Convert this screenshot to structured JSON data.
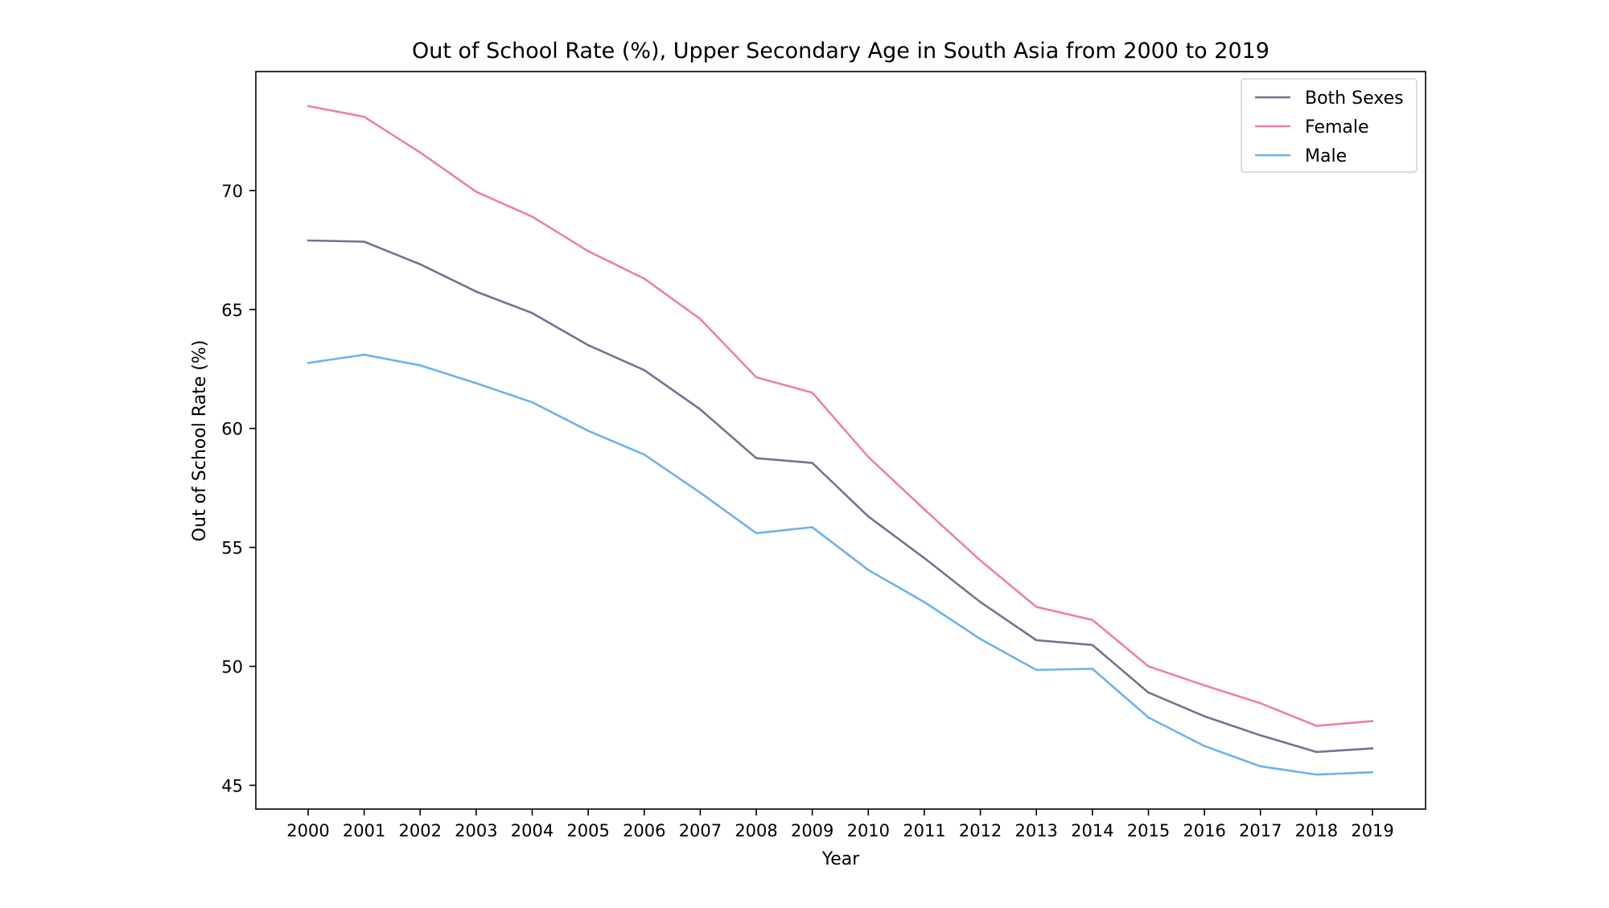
{
  "chart_data": {
    "type": "line",
    "title": "Out of School Rate (%), Upper Secondary Age in South Asia from 2000 to 2019",
    "xlabel": "Year",
    "ylabel": "Out of School Rate (%)",
    "x": [
      "2000",
      "2001",
      "2002",
      "2003",
      "2004",
      "2005",
      "2006",
      "2007",
      "2008",
      "2009",
      "2010",
      "2011",
      "2012",
      "2013",
      "2014",
      "2015",
      "2016",
      "2017",
      "2018",
      "2019"
    ],
    "yticks": [
      45,
      50,
      55,
      60,
      65,
      70
    ],
    "ylim": [
      44.0,
      75.0
    ],
    "grid": false,
    "legend_position": "top-right",
    "series": [
      {
        "name": "Both Sexes",
        "color": "#6e7591",
        "values": [
          67.9,
          67.85,
          66.9,
          65.75,
          64.85,
          63.5,
          62.45,
          60.8,
          58.75,
          58.55,
          56.3,
          54.55,
          52.7,
          51.1,
          50.9,
          48.9,
          47.9,
          47.1,
          46.4,
          46.55
        ]
      },
      {
        "name": "Female",
        "color": "#ef7fa6",
        "values": [
          73.55,
          73.1,
          71.6,
          69.95,
          68.9,
          67.45,
          66.3,
          64.6,
          62.15,
          61.5,
          58.8,
          56.6,
          54.45,
          52.5,
          51.95,
          50.0,
          49.2,
          48.45,
          47.5,
          47.7
        ]
      },
      {
        "name": "Male",
        "color": "#6cb2ef",
        "values": [
          62.75,
          63.1,
          62.65,
          61.9,
          61.1,
          59.9,
          58.9,
          57.3,
          55.6,
          55.85,
          54.05,
          52.7,
          51.15,
          49.85,
          49.9,
          47.85,
          46.65,
          45.8,
          45.45,
          45.55
        ]
      }
    ]
  }
}
